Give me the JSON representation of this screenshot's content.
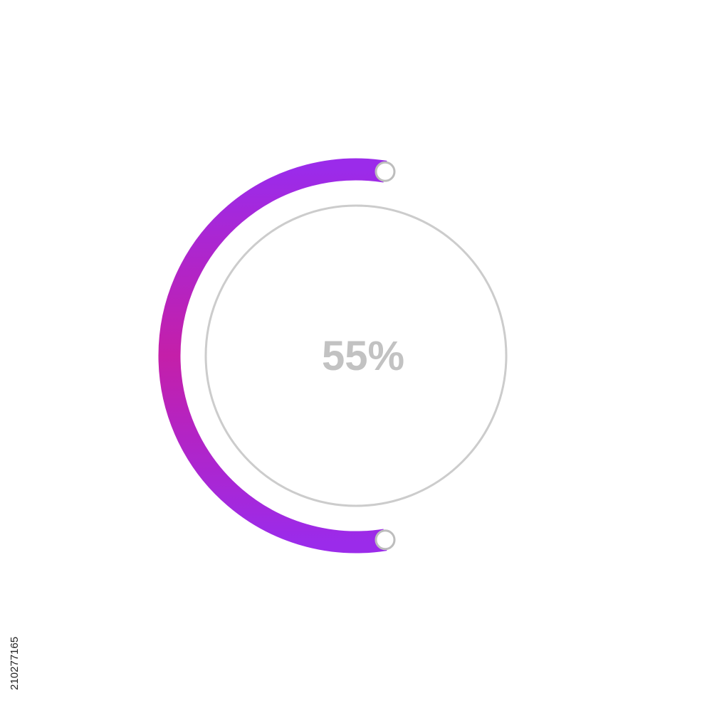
{
  "chart_data": {
    "type": "progress-ring",
    "value_percent": 55,
    "label": "55%",
    "colors": {
      "arc_start": "#9b2bea",
      "arc_mid": "#c41fa9",
      "arc_end": "#9b2bea",
      "track": "#cccccc",
      "label": "#c2c2c2",
      "end_cap_fill": "#ffffff",
      "end_cap_stroke": "#bdbdbd"
    }
  },
  "watermark": {
    "stock_id": "210277165"
  }
}
